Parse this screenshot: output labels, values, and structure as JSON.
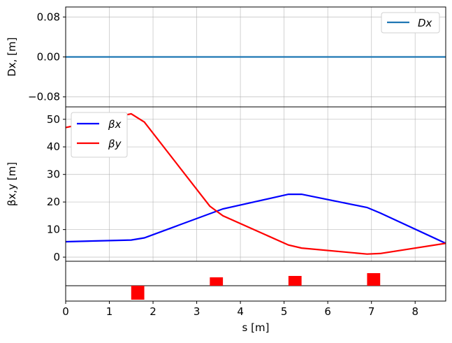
{
  "chart_data": [
    {
      "type": "line",
      "panel": "dispersion",
      "ylabel": "Dx, [m]",
      "ylim": [
        -0.1,
        0.1
      ],
      "yticks": [
        -0.08,
        0.0,
        0.08
      ],
      "ytick_labels": [
        "−0.08",
        "0.00",
        "0.08"
      ],
      "grid": true,
      "legend_position": "top-right",
      "series": [
        {
          "name": "Dx",
          "color": "#1f77b4",
          "x": [
            0,
            8.7
          ],
          "y": [
            0,
            0
          ]
        }
      ]
    },
    {
      "type": "line",
      "panel": "beta",
      "ylabel": "βx,y [m]",
      "ylim": [
        -1.5,
        54.5
      ],
      "yticks": [
        0,
        10,
        20,
        30,
        40,
        50
      ],
      "ytick_labels": [
        "0",
        "10",
        "20",
        "30",
        "40",
        "50"
      ],
      "grid": true,
      "legend_position": "top-left",
      "series": [
        {
          "name": "βx",
          "color": "#0000ff",
          "x": [
            0,
            1.5,
            1.8,
            3.6,
            5.1,
            5.4,
            6.9,
            7.2,
            8.7
          ],
          "y": [
            5.6,
            6.2,
            7.0,
            17.5,
            22.8,
            22.8,
            18.0,
            16.0,
            5.0
          ]
        },
        {
          "name": "βy",
          "color": "#ff0000",
          "x": [
            0,
            1.5,
            1.8,
            3.3,
            3.6,
            5.1,
            5.4,
            6.9,
            7.2,
            8.7
          ],
          "y": [
            47.0,
            52.0,
            49.0,
            18.5,
            15.0,
            4.4,
            3.3,
            1.1,
            1.3,
            5.0
          ]
        }
      ]
    },
    {
      "type": "bar",
      "panel": "lattice",
      "elements": [
        {
          "s_start": 1.5,
          "s_end": 1.8,
          "strength": -1.0
        },
        {
          "s_start": 3.3,
          "s_end": 3.6,
          "strength": 0.6
        },
        {
          "s_start": 5.1,
          "s_end": 5.4,
          "strength": 0.7
        },
        {
          "s_start": 6.9,
          "s_end": 7.2,
          "strength": 0.9
        }
      ],
      "color": "#ff0000"
    }
  ],
  "x_axis": {
    "label": "s [m]",
    "xlim": [
      0,
      8.7
    ],
    "ticks": [
      0,
      1,
      2,
      3,
      4,
      5,
      6,
      7,
      8
    ],
    "tick_labels": [
      "0",
      "1",
      "2",
      "3",
      "4",
      "5",
      "6",
      "7",
      "8"
    ]
  },
  "legend_top": {
    "label": "Dx"
  },
  "legend_beta": {
    "label_x": "βx",
    "label_y": "βy"
  }
}
